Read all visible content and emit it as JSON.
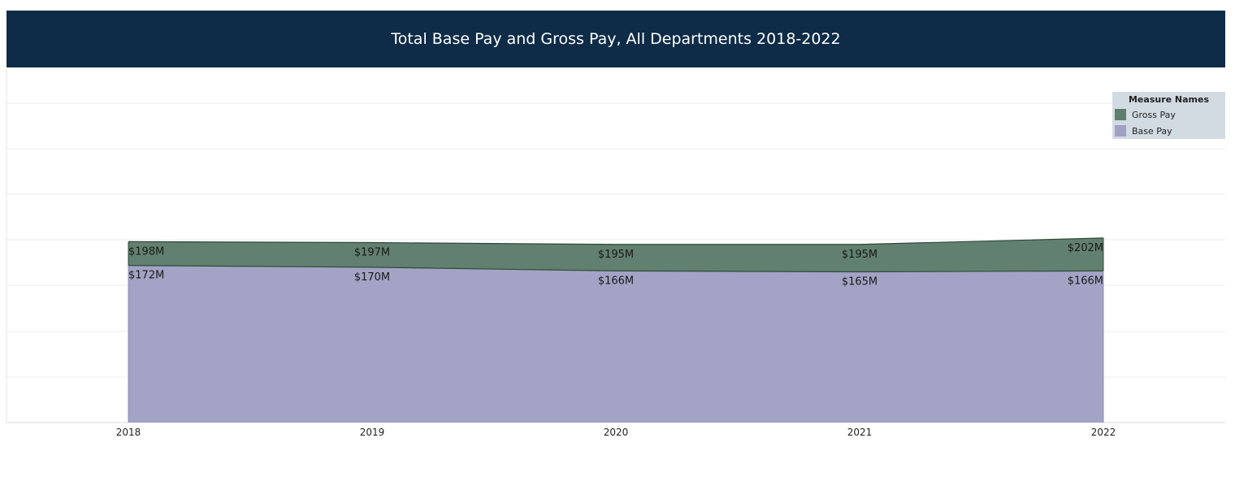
{
  "header": {
    "title": "Total Base Pay and Gross Pay, All Departments 2018-2022"
  },
  "legend": {
    "title": "Measure Names",
    "items": [
      {
        "label": "Gross Pay",
        "color": "#5f7f6e"
      },
      {
        "label": "Base Pay",
        "color": "#a1a1c4"
      }
    ]
  },
  "chart_data": {
    "type": "area",
    "x": [
      "2018",
      "2019",
      "2020",
      "2021",
      "2022"
    ],
    "series": [
      {
        "name": "Gross Pay",
        "values": [
          198,
          197,
          195,
          195,
          202
        ],
        "labels": [
          "$198M",
          "$197M",
          "$195M",
          "$195M",
          "$202M"
        ],
        "color": "#5f7f6e"
      },
      {
        "name": "Base Pay",
        "values": [
          172,
          170,
          166,
          165,
          166
        ],
        "labels": [
          "$172M",
          "$170M",
          "$166M",
          "$165M",
          "$166M"
        ],
        "color": "#a1a1c4"
      }
    ],
    "stacked": false,
    "unit": "$M",
    "xlabel": "",
    "ylabel": "",
    "grid": true,
    "legend_position": "top-right"
  }
}
